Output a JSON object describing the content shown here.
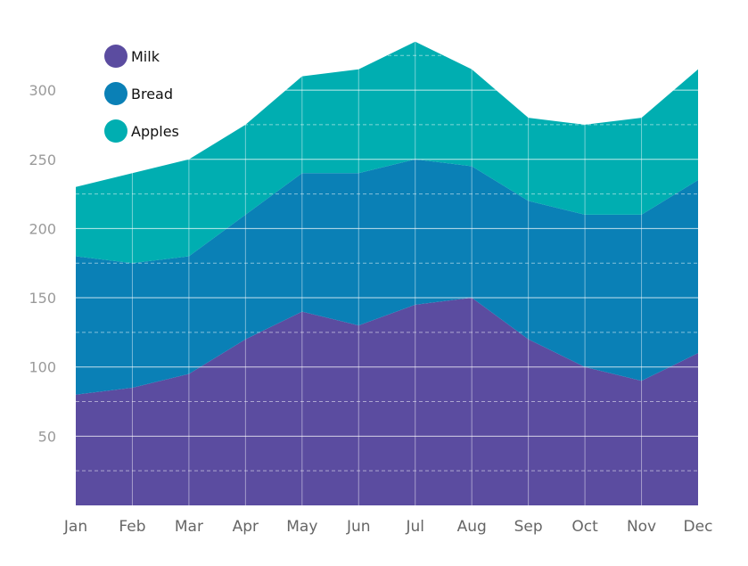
{
  "chart_data": {
    "type": "area",
    "stacked": true,
    "categories": [
      "Jan",
      "Feb",
      "Mar",
      "Apr",
      "May",
      "Jun",
      "Jul",
      "Aug",
      "Sep",
      "Oct",
      "Nov",
      "Dec"
    ],
    "series": [
      {
        "name": "Milk",
        "color": "#5b4ca0",
        "values": [
          80,
          85,
          95,
          120,
          140,
          130,
          145,
          150,
          120,
          100,
          90,
          110
        ]
      },
      {
        "name": "Bread",
        "color": "#0a80b6",
        "values": [
          100,
          90,
          85,
          90,
          100,
          110,
          105,
          95,
          100,
          110,
          120,
          125
        ]
      },
      {
        "name": "Apples",
        "color": "#00aeb1",
        "values": [
          50,
          65,
          70,
          65,
          70,
          75,
          85,
          70,
          60,
          65,
          70,
          80
        ]
      }
    ],
    "y_ticks": [
      "50",
      "100",
      "150",
      "200",
      "250",
      "300"
    ],
    "ylim": [
      0,
      345
    ],
    "grid": true,
    "legend_position": "top-left",
    "title": "",
    "xlabel": "",
    "ylabel": ""
  }
}
